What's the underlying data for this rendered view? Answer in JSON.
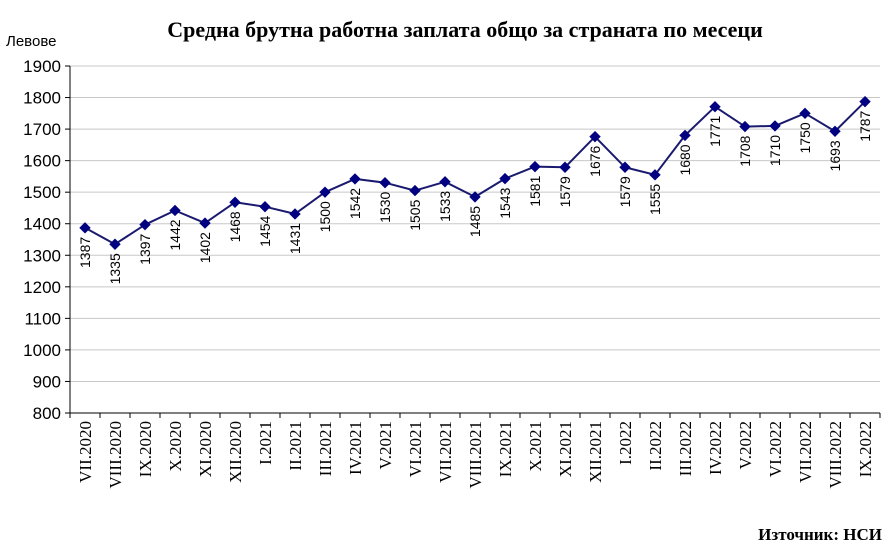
{
  "chart_data": {
    "type": "line",
    "title": "Средна брутна работна заплата общо за страната по месеци",
    "ylabel": "Левове",
    "xlabel": "",
    "source": "Източник: НСИ",
    "ylim": [
      800,
      1900
    ],
    "ytick_step": 100,
    "grid": true,
    "legend": "none",
    "categories": [
      "VII.2020",
      "VIII.2020",
      "IX.2020",
      "X.2020",
      "XI.2020",
      "XII.2020",
      "I.2021",
      "II.2021",
      "III.2021",
      "IV.2021",
      "V.2021",
      "VI.2021",
      "VII.2021",
      "VIII.2021",
      "IX.2021",
      "X.2021",
      "XI.2021",
      "XII.2021",
      "I.2022",
      "II.2022",
      "III.2022",
      "IV.2022",
      "V.2022",
      "VI.2022",
      "VII.2022",
      "VIII.2022",
      "IX.2022"
    ],
    "values": [
      1387,
      1335,
      1397,
      1442,
      1402,
      1468,
      1454,
      1431,
      1500,
      1542,
      1530,
      1505,
      1533,
      1485,
      1543,
      1581,
      1579,
      1676,
      1579,
      1555,
      1680,
      1771,
      1708,
      1710,
      1750,
      1693,
      1787
    ],
    "colors": {
      "line": "#1a1a6e",
      "marker": "#000080",
      "grid": "#c8c8c8",
      "axis": "#000000"
    }
  }
}
